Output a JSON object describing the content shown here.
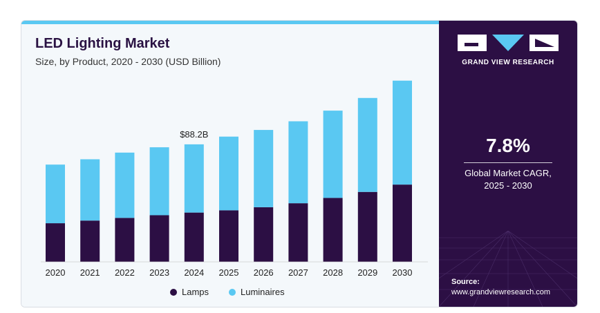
{
  "header": {
    "title": "LED Lighting Market",
    "subtitle": "Size, by Product, 2020 - 2030 (USD Billion)"
  },
  "brand": {
    "name": "GRAND VIEW RESEARCH"
  },
  "stat": {
    "value": "7.8%",
    "description_line1": "Global Market CAGR,",
    "description_line2": "2025 - 2030"
  },
  "source": {
    "label": "Source:",
    "url": "www.grandviewresearch.com"
  },
  "colors": {
    "lamps": "#2c0f44",
    "luminaires": "#5ac8f2",
    "panel": "#2c0f44",
    "accent": "#5ac8f2"
  },
  "chart_data": {
    "type": "bar",
    "stacked": true,
    "categories": [
      "2020",
      "2021",
      "2022",
      "2023",
      "2024",
      "2025",
      "2026",
      "2027",
      "2028",
      "2029",
      "2030"
    ],
    "series": [
      {
        "name": "Lamps",
        "values": [
          29,
          31,
          33,
          35,
          37,
          38.7,
          41,
          44,
          48,
          52.5,
          58
        ]
      },
      {
        "name": "Luminaires",
        "values": [
          44,
          46,
          49,
          51,
          51.2,
          55.3,
          58,
          61.5,
          65.5,
          70.5,
          78
        ]
      }
    ],
    "annotations": [
      {
        "category": "2024",
        "text": "$88.2B"
      }
    ],
    "legend": [
      "Lamps",
      "Luminaires"
    ],
    "legend_position": "bottom",
    "ylim": [
      0,
      140
    ],
    "grid": false
  }
}
